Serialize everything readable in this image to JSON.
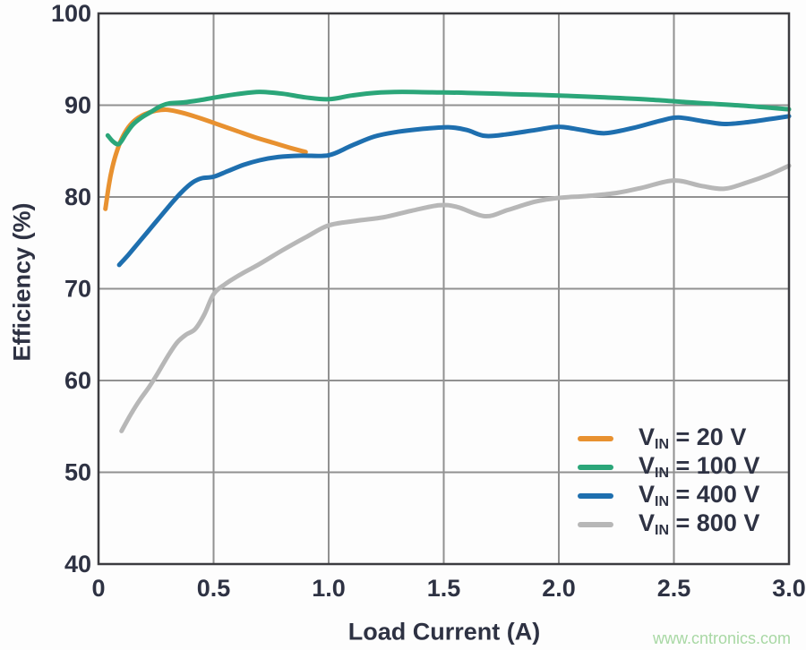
{
  "watermark": {
    "text": "www.cntronics.com",
    "color": "#a8d8a4"
  },
  "chart_data": {
    "type": "line",
    "title": "",
    "xlabel": "Load Current (A)",
    "ylabel": "Efficiency (%)",
    "xlim": [
      0,
      3
    ],
    "ylim": [
      40,
      100
    ],
    "x_ticks": [
      0,
      0.5,
      1.0,
      1.5,
      2.0,
      2.5,
      3.0
    ],
    "x_tick_labels": [
      "0",
      "0.5",
      "1.0",
      "1.5",
      "2.0",
      "2.5",
      "3.0"
    ],
    "y_ticks": [
      40,
      50,
      60,
      70,
      80,
      90,
      100
    ],
    "y_tick_labels": [
      "40",
      "50",
      "60",
      "70",
      "80",
      "90",
      "100"
    ],
    "grid": true,
    "legend_position": "inside-bottom-right",
    "colors": {
      "axis_text": "#2e3243",
      "grid": "#919191",
      "border": "#3c3c40"
    },
    "series": [
      {
        "name": "VIN = 20 V",
        "legend_base": "V",
        "legend_sub": "IN",
        "legend_rest": " = 20 V",
        "color": "#e89130",
        "points": [
          [
            0.03,
            78.7
          ],
          [
            0.045,
            81.3
          ],
          [
            0.06,
            83.2
          ],
          [
            0.08,
            85.0
          ],
          [
            0.1,
            86.3
          ],
          [
            0.13,
            87.6
          ],
          [
            0.16,
            88.4
          ],
          [
            0.2,
            89.0
          ],
          [
            0.25,
            89.4
          ],
          [
            0.3,
            89.5
          ],
          [
            0.36,
            89.2
          ],
          [
            0.44,
            88.6
          ],
          [
            0.52,
            87.9
          ],
          [
            0.6,
            87.2
          ],
          [
            0.68,
            86.5
          ],
          [
            0.76,
            85.9
          ],
          [
            0.84,
            85.3
          ],
          [
            0.9,
            84.9
          ]
        ]
      },
      {
        "name": "VIN = 100 V",
        "legend_base": "V",
        "legend_sub": "IN",
        "legend_rest": " = 100 V",
        "color": "#2ba679",
        "points": [
          [
            0.04,
            86.7
          ],
          [
            0.065,
            86.0
          ],
          [
            0.09,
            85.8
          ],
          [
            0.12,
            86.9
          ],
          [
            0.15,
            87.9
          ],
          [
            0.19,
            88.7
          ],
          [
            0.23,
            89.3
          ],
          [
            0.27,
            89.9
          ],
          [
            0.31,
            90.2
          ],
          [
            0.37,
            90.3
          ],
          [
            0.44,
            90.55
          ],
          [
            0.52,
            90.9
          ],
          [
            0.6,
            91.2
          ],
          [
            0.7,
            91.45
          ],
          [
            0.8,
            91.25
          ],
          [
            0.9,
            90.85
          ],
          [
            1.0,
            90.65
          ],
          [
            1.1,
            91.05
          ],
          [
            1.2,
            91.35
          ],
          [
            1.32,
            91.45
          ],
          [
            1.45,
            91.4
          ],
          [
            1.6,
            91.35
          ],
          [
            1.8,
            91.2
          ],
          [
            2.0,
            91.05
          ],
          [
            2.2,
            90.85
          ],
          [
            2.4,
            90.6
          ],
          [
            2.6,
            90.25
          ],
          [
            2.8,
            89.95
          ],
          [
            3.0,
            89.55
          ]
        ]
      },
      {
        "name": "VIN = 400 V",
        "legend_base": "V",
        "legend_sub": "IN",
        "legend_rest": " = 400 V",
        "color": "#1e6faf",
        "points": [
          [
            0.09,
            72.6
          ],
          [
            0.13,
            73.7
          ],
          [
            0.17,
            74.9
          ],
          [
            0.21,
            76.1
          ],
          [
            0.26,
            77.6
          ],
          [
            0.31,
            79.1
          ],
          [
            0.36,
            80.5
          ],
          [
            0.41,
            81.6
          ],
          [
            0.45,
            82.05
          ],
          [
            0.5,
            82.2
          ],
          [
            0.56,
            82.8
          ],
          [
            0.63,
            83.5
          ],
          [
            0.7,
            84.0
          ],
          [
            0.78,
            84.35
          ],
          [
            0.88,
            84.5
          ],
          [
            1.0,
            84.55
          ],
          [
            1.1,
            85.6
          ],
          [
            1.2,
            86.6
          ],
          [
            1.3,
            87.1
          ],
          [
            1.4,
            87.4
          ],
          [
            1.52,
            87.6
          ],
          [
            1.6,
            87.3
          ],
          [
            1.68,
            86.65
          ],
          [
            1.78,
            86.85
          ],
          [
            1.9,
            87.3
          ],
          [
            2.0,
            87.65
          ],
          [
            2.1,
            87.3
          ],
          [
            2.2,
            86.95
          ],
          [
            2.32,
            87.5
          ],
          [
            2.44,
            88.3
          ],
          [
            2.52,
            88.65
          ],
          [
            2.64,
            88.2
          ],
          [
            2.72,
            87.95
          ],
          [
            2.82,
            88.15
          ],
          [
            2.92,
            88.5
          ],
          [
            3.0,
            88.8
          ]
        ]
      },
      {
        "name": "VIN = 800 V",
        "legend_base": "V",
        "legend_sub": "IN",
        "legend_rest": " = 800 V",
        "color": "#b7b7b7",
        "points": [
          [
            0.1,
            54.5
          ],
          [
            0.14,
            56.3
          ],
          [
            0.18,
            57.9
          ],
          [
            0.22,
            59.3
          ],
          [
            0.26,
            60.9
          ],
          [
            0.3,
            62.6
          ],
          [
            0.34,
            64.1
          ],
          [
            0.38,
            65.0
          ],
          [
            0.42,
            65.6
          ],
          [
            0.46,
            67.2
          ],
          [
            0.5,
            69.4
          ],
          [
            0.55,
            70.5
          ],
          [
            0.62,
            71.6
          ],
          [
            0.7,
            72.7
          ],
          [
            0.8,
            74.2
          ],
          [
            0.9,
            75.6
          ],
          [
            1.0,
            76.9
          ],
          [
            1.12,
            77.4
          ],
          [
            1.24,
            77.8
          ],
          [
            1.36,
            78.5
          ],
          [
            1.48,
            79.1
          ],
          [
            1.56,
            78.9
          ],
          [
            1.68,
            77.9
          ],
          [
            1.78,
            78.6
          ],
          [
            1.9,
            79.5
          ],
          [
            2.0,
            79.9
          ],
          [
            2.12,
            80.1
          ],
          [
            2.24,
            80.4
          ],
          [
            2.36,
            81.0
          ],
          [
            2.5,
            81.8
          ],
          [
            2.62,
            81.2
          ],
          [
            2.72,
            80.9
          ],
          [
            2.82,
            81.6
          ],
          [
            2.92,
            82.5
          ],
          [
            3.0,
            83.4
          ]
        ]
      }
    ]
  }
}
